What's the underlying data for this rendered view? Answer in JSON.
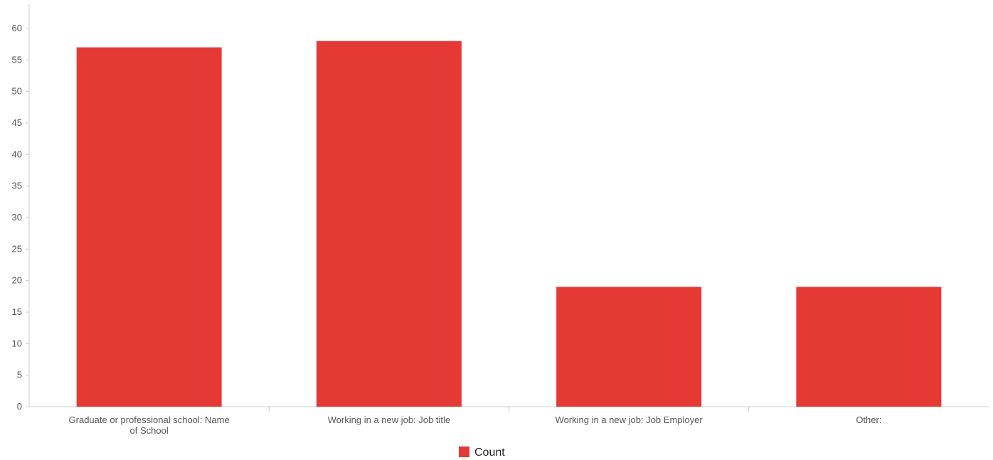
{
  "chart_data": {
    "type": "bar",
    "categories": [
      "Graduate or professional school: Name of School",
      "Working in a new job: Job title",
      "Working in a new job: Job Employer",
      "Other:"
    ],
    "category_lines": [
      [
        "Graduate or professional school: Name",
        "of School"
      ],
      [
        "Working in a new job: Job title"
      ],
      [
        "Working in a new job: Job Employer"
      ],
      [
        "Other:"
      ]
    ],
    "series": [
      {
        "name": "Count",
        "values": [
          57,
          58,
          19,
          19
        ]
      }
    ],
    "ylim": [
      0,
      60
    ],
    "yticks": [
      0,
      5,
      10,
      15,
      20,
      25,
      30,
      35,
      40,
      45,
      50,
      55,
      60
    ],
    "grid": false,
    "legend": "bottom-center",
    "colors": {
      "bar": "#e53935",
      "axis": "#cccccc",
      "text": "#555555"
    }
  }
}
